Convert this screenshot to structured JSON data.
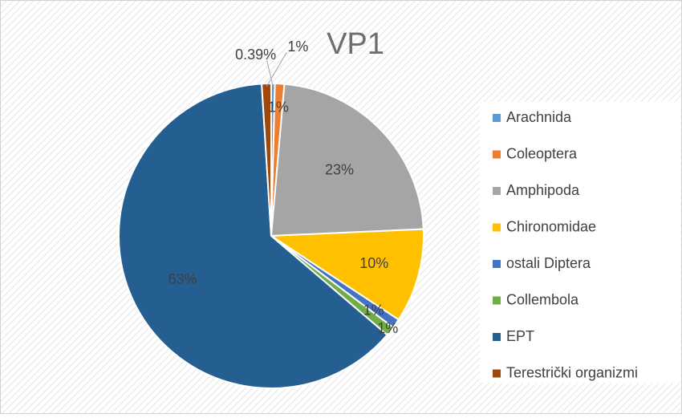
{
  "chart_data": {
    "type": "pie",
    "title": "VP1",
    "categories": [
      "Arachnida",
      "Coleoptera",
      "Amphipoda",
      "Chironomidae",
      "ostali Diptera",
      "Collembola",
      "EPT",
      "Terestrički organizmi"
    ],
    "values": [
      0.39,
      1,
      23,
      10,
      1,
      1,
      63,
      1
    ],
    "value_labels": [
      "0.39%",
      "1%",
      "23%",
      "10%",
      "1%",
      "1%",
      "63%",
      "1%"
    ],
    "colors": [
      "#5b9bd5",
      "#ed7d31",
      "#a5a5a5",
      "#ffc000",
      "#4472c4",
      "#70ad47",
      "#255e91",
      "#9e480e"
    ],
    "legend": "right"
  }
}
